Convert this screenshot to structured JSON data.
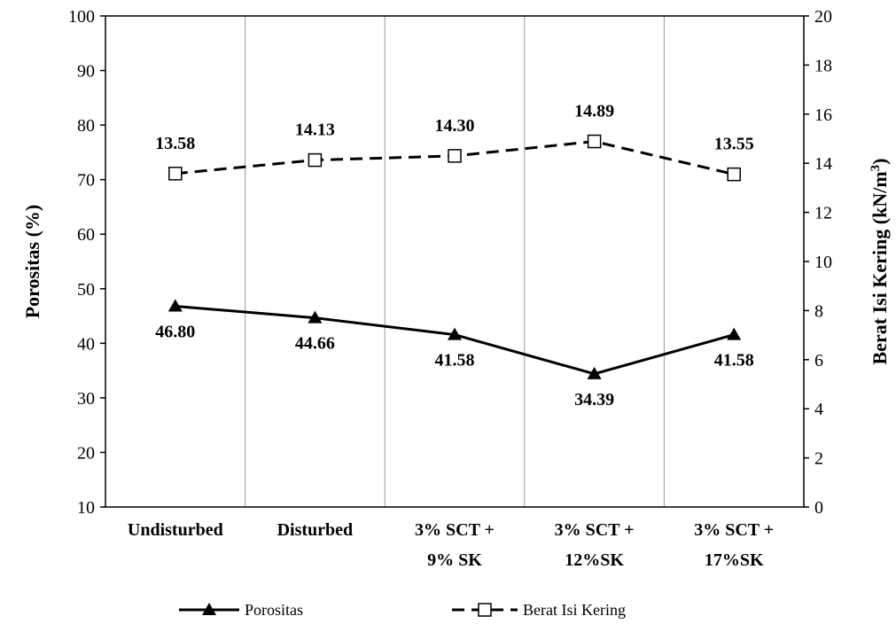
{
  "chart_data": {
    "type": "line",
    "categories": [
      [
        "Undisturbed"
      ],
      [
        "Disturbed"
      ],
      [
        "3% SCT +",
        "9% SK"
      ],
      [
        "3% SCT +",
        "12%SK"
      ],
      [
        "3% SCT +",
        "17%SK"
      ]
    ],
    "y_left": {
      "label": "Porositas (%)",
      "lim": [
        10,
        100
      ],
      "ticks": [
        10,
        20,
        30,
        40,
        50,
        60,
        70,
        80,
        90,
        100
      ]
    },
    "y_right": {
      "label": "Berat Isi Kering (kN/m",
      "label_sup": "3",
      "label_end": ")",
      "lim": [
        0,
        20
      ],
      "ticks": [
        0,
        2,
        4,
        6,
        8,
        10,
        12,
        14,
        16,
        18,
        20
      ]
    },
    "series": [
      {
        "name": "Porositas",
        "axis": "left",
        "values": [
          46.8,
          44.66,
          41.58,
          34.39,
          41.58
        ],
        "labels": [
          "46.80",
          "44.66",
          "41.58",
          "34.39",
          "41.58"
        ],
        "marker": "filled-triangle",
        "line": "solid",
        "color": "#000000"
      },
      {
        "name": "Berat Isi Kering",
        "axis": "right",
        "values": [
          13.58,
          14.13,
          14.3,
          14.89,
          13.55
        ],
        "labels": [
          "13.58",
          "14.13",
          "14.30",
          "14.89",
          "13.55"
        ],
        "marker": "open-square",
        "line": "dashed",
        "color": "#000000"
      }
    ],
    "grid": "vertical",
    "legend_position": "bottom"
  }
}
